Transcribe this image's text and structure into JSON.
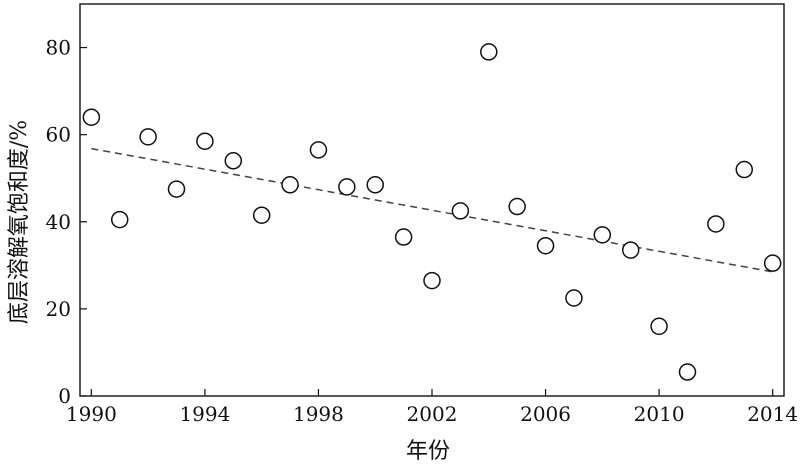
{
  "chart_data": {
    "type": "scatter",
    "xlabel": "年份",
    "ylabel": "底层溶解氧饱和度/%",
    "xlim": [
      1989.6,
      2014.4
    ],
    "ylim": [
      0,
      90
    ],
    "xticks": [
      1990,
      1994,
      1998,
      2002,
      2006,
      2010,
      2014
    ],
    "yticks": [
      0,
      20,
      40,
      60,
      80
    ],
    "grid": false,
    "legend": "none",
    "colors": {
      "marker_stroke": "#111111",
      "marker_fill": "#ffffff",
      "trend": "#444444",
      "axis": "#111111"
    },
    "series": [
      {
        "x": [
          1990,
          1991,
          1992,
          1993,
          1994,
          1995,
          1996,
          1997,
          1998,
          1999,
          2000,
          2001,
          2002,
          2003,
          2004,
          2005,
          2006,
          2007,
          2008,
          2009,
          2010,
          2011,
          2012,
          2013,
          2014
        ],
        "y": [
          64,
          40.5,
          59.5,
          47.5,
          58.5,
          54,
          41.5,
          48.5,
          56.5,
          48,
          48.5,
          36.5,
          26.5,
          42.5,
          79,
          43.5,
          34.5,
          22.5,
          37,
          33.5,
          16,
          5.5,
          39.5,
          52,
          30.5
        ]
      }
    ],
    "trendline": {
      "style": "dashed",
      "x": [
        1990,
        2014
      ],
      "y": [
        56.8,
        28.5
      ]
    }
  }
}
